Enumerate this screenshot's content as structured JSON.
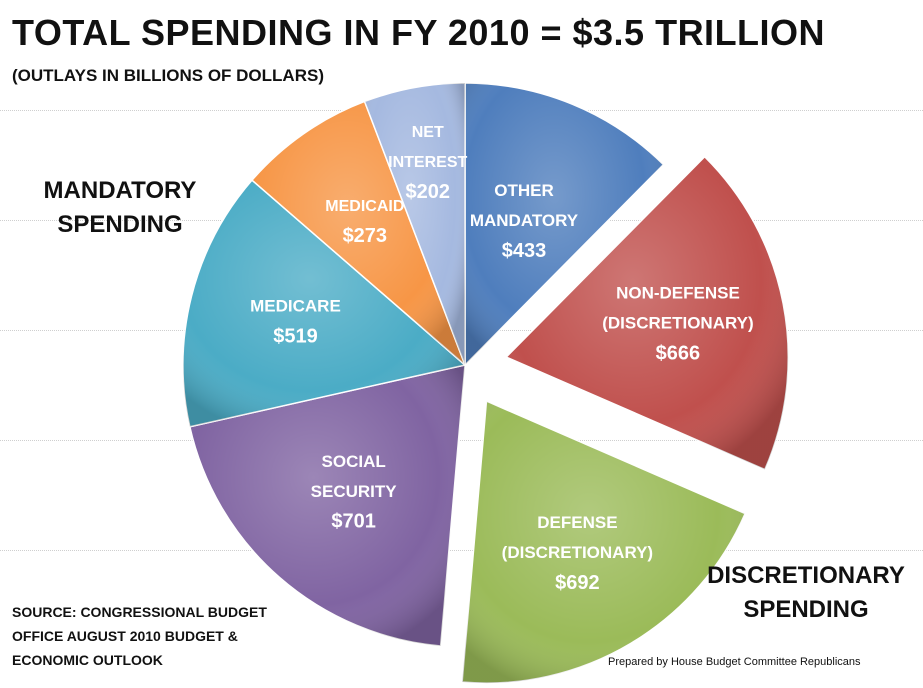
{
  "title": "TOTAL SPENDING IN FY 2010 = $3.5 TRILLION",
  "subtitle": "(OUTLAYS IN BILLIONS OF DOLLARS)",
  "mandatory_label": "MANDATORY\nSPENDING",
  "discretionary_label": "DISCRETIONARY\nSPENDING",
  "source": "SOURCE: CONGRESSIONAL BUDGET\nOFFICE AUGUST 2010 BUDGET &\nECONOMIC OUTLOOK",
  "credit": "Prepared by House Budget Committee Republicans",
  "chart_data": {
    "type": "pie",
    "title": "TOTAL SPENDING IN FY 2010 = $3.5 TRILLION",
    "unit": "billions of dollars",
    "slices": [
      {
        "label": "OTHER MANDATORY",
        "value": 433,
        "value_label": "$433",
        "color": "#4f7ebd",
        "exploded": false
      },
      {
        "label": "NON-DEFENSE (DISCRETIONARY)",
        "value": 666,
        "value_label": "$666",
        "color": "#c0504d",
        "exploded": true
      },
      {
        "label": "DEFENSE (DISCRETIONARY)",
        "value": 692,
        "value_label": "$692",
        "color": "#9bbb59",
        "exploded": true
      },
      {
        "label": "SOCIAL SECURITY",
        "value": 701,
        "value_label": "$701",
        "color": "#8064a2",
        "exploded": false
      },
      {
        "label": "MEDICARE",
        "value": 519,
        "value_label": "$519",
        "color": "#4bacc6",
        "exploded": false
      },
      {
        "label": "MEDICAID",
        "value": 273,
        "value_label": "$273",
        "color": "#f79646",
        "exploded": false
      },
      {
        "label": "NET INTEREST",
        "value": 202,
        "value_label": "$202",
        "color": "#a5b9e0",
        "exploded": false
      }
    ]
  }
}
